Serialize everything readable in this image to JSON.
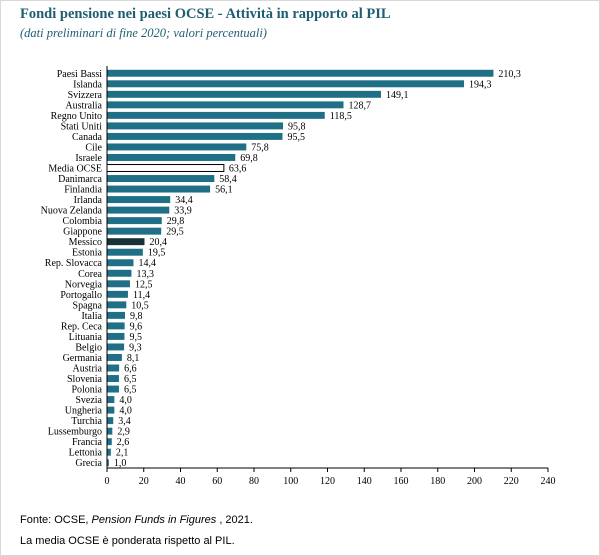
{
  "header": {
    "title": "Fondi pensione nei paesi OCSE - Attività in rapporto al PIL",
    "subtitle": "(dati preliminari di fine 2020; valori percentuali)"
  },
  "footer": {
    "source_prefix": "Fonte: OCSE, ",
    "source_title": "Pension Funds in Figures",
    "source_suffix": " , 2021.",
    "note": "La media OCSE è ponderata rispetto al PIL."
  },
  "colors": {
    "bar": "#1f6f86",
    "average_bar": "#ffffff",
    "mexico_bar": "#17303a",
    "axis": "#000000"
  },
  "chart_data": {
    "type": "bar",
    "orientation": "horizontal",
    "categories": [
      "Paesi Bassi",
      "Islanda",
      "Svizzera",
      "Australia",
      "Regno Unito",
      "Stati Uniti",
      "Canada",
      "Cile",
      "Israele",
      "Media OCSE",
      "Danimarca",
      "Finlandia",
      "Irlanda",
      "Nuova Zelanda",
      "Colombia",
      "Giappone",
      "Messico",
      "Estonia",
      "Rep. Slovacca",
      "Corea",
      "Norvegia",
      "Portogallo",
      "Spagna",
      "Italia",
      "Rep. Ceca",
      "Lituania",
      "Belgio",
      "Germania",
      "Austria",
      "Slovenia",
      "Polonia",
      "Svezia",
      "Ungheria",
      "Turchia",
      "Lussemburgo",
      "Francia",
      "Lettonia",
      "Grecia"
    ],
    "values": [
      210.3,
      194.3,
      149.1,
      128.7,
      118.5,
      95.8,
      95.5,
      75.8,
      69.8,
      63.6,
      58.4,
      56.1,
      34.4,
      33.9,
      29.8,
      29.5,
      20.4,
      19.5,
      14.4,
      13.3,
      12.5,
      11.4,
      10.5,
      9.8,
      9.6,
      9.5,
      9.3,
      8.1,
      6.6,
      6.5,
      6.5,
      4.0,
      4.0,
      3.4,
      2.9,
      2.6,
      2.1,
      1.0
    ],
    "value_labels": [
      "210,3",
      "194,3",
      "149,1",
      "128,7",
      "118,5",
      "95,8",
      "95,5",
      "75,8",
      "69,8",
      "63,6",
      "58,4",
      "56,1",
      "34,4",
      "33,9",
      "29,8",
      "29,5",
      "20,4",
      "19,5",
      "14,4",
      "13,3",
      "12,5",
      "11,4",
      "10,5",
      "9,8",
      "9,6",
      "9,5",
      "9,3",
      "8,1",
      "6,6",
      "6,5",
      "6,5",
      "4,0",
      "4,0",
      "3,4",
      "2,9",
      "2,6",
      "2,1",
      "1,0"
    ],
    "highlight": {
      "average": "Media OCSE",
      "dark": "Messico"
    },
    "xlim": [
      0,
      240
    ],
    "xticks": [
      "0",
      "20",
      "40",
      "60",
      "80",
      "100",
      "120",
      "140",
      "160",
      "180",
      "200",
      "220",
      "240"
    ],
    "grid": false,
    "legend": "none"
  }
}
